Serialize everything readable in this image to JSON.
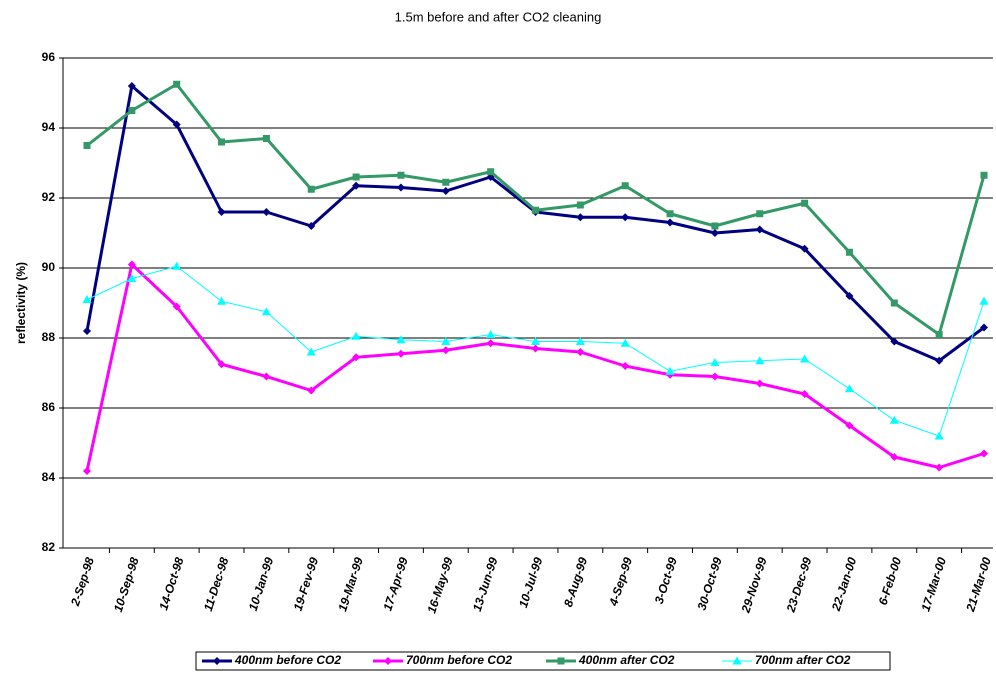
{
  "chart_data": {
    "type": "line",
    "title": "1.5m before and after CO2 cleaning",
    "y_label": "reflectivity (%)",
    "categories": [
      "2-Sep-98",
      "10-Sep-98",
      "14-Oct-98",
      "11-Dec-98",
      "10-Jan-99",
      "19-Fev-99",
      "19-Mar-99",
      "17-Apr-99",
      "16-May-99",
      "13-Jun-99",
      "10-Jul-99",
      "8-Aug-99",
      "4-Sep-99",
      "3-Oct-99",
      "30-Oct-99",
      "29-Nov-99",
      "23-Dec-99",
      "22-Jan-00",
      "6-Feb-00",
      "17-Mar-00",
      "21-Mar-00"
    ],
    "series": [
      {
        "name": "400nm before CO2",
        "color": "#000080",
        "marker": "diamond",
        "width": 3,
        "values": [
          88.2,
          95.2,
          94.1,
          91.6,
          91.6,
          91.2,
          92.35,
          92.3,
          92.2,
          92.6,
          91.6,
          91.45,
          91.45,
          91.3,
          91.0,
          91.1,
          90.55,
          89.2,
          87.9,
          87.35,
          88.3
        ]
      },
      {
        "name": "700nm before CO2",
        "color": "#ff00ff",
        "marker": "diamond",
        "width": 3,
        "values": [
          84.2,
          90.1,
          88.9,
          87.25,
          86.9,
          86.5,
          87.45,
          87.55,
          87.65,
          87.85,
          87.7,
          87.6,
          87.2,
          86.95,
          86.9,
          86.7,
          86.4,
          85.5,
          84.6,
          84.3,
          84.7
        ]
      },
      {
        "name": "400nm after CO2",
        "color": "#339966",
        "marker": "square",
        "width": 3,
        "values": [
          93.5,
          94.5,
          95.25,
          93.6,
          93.7,
          92.25,
          92.6,
          92.65,
          92.45,
          92.75,
          91.65,
          91.8,
          92.35,
          91.55,
          91.2,
          91.55,
          91.85,
          90.45,
          89.0,
          88.1,
          92.65
        ]
      },
      {
        "name": "700nm after CO2",
        "color": "#00ffff",
        "marker": "triangle",
        "width": 1,
        "values": [
          89.1,
          89.7,
          90.05,
          89.05,
          88.75,
          87.6,
          88.05,
          87.95,
          87.9,
          88.1,
          87.9,
          87.9,
          87.85,
          87.05,
          87.3,
          87.35,
          87.4,
          86.55,
          85.65,
          85.2,
          89.05
        ]
      }
    ],
    "ylim": [
      82,
      96
    ],
    "yticks": [
      82,
      84,
      86,
      88,
      90,
      92,
      94,
      96
    ],
    "grid": true,
    "legend": "bottom"
  }
}
